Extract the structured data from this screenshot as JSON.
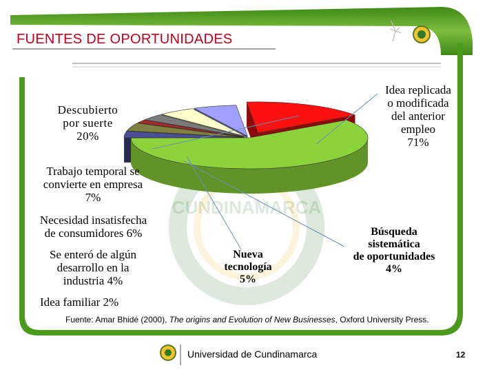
{
  "slide": {
    "title": "FUENTES DE OPORTUNIDADES",
    "source_prefix": "Fuente:  Amar Bhidé (2000), ",
    "source_italic": "The origins and Evolution of New Businesses",
    "source_suffix": ", Oxford University Press.",
    "university": "Universidad de Cundinamarca",
    "page_number": "12",
    "watermark_text": "CUNDINAMARCA",
    "colors": {
      "frame_green": "#4a9a1c",
      "title_red": "#c0001a"
    }
  },
  "chart_data": {
    "type": "pie",
    "title": "",
    "slices": [
      {
        "label": "Idea replicada\no modificada\ndel anterior\nempleo\n71%",
        "value": 71,
        "color": "#8cd23a"
      },
      {
        "label": "Búsqueda\nsistemática\nde oportunidades\n4%",
        "value": 4,
        "color": "#4a4f96"
      },
      {
        "label": "Nueva\ntecnología\n5%",
        "value": 5,
        "color": "#808040"
      },
      {
        "label": "Idea familiar  2%",
        "value": 2,
        "color": "#a52a2a"
      },
      {
        "label": "Se enteró de algún\ndesarrollo en la\nindustria  4%",
        "value": 4,
        "color": "#7a7a7a"
      },
      {
        "label": "Necesidad insatisfecha\nde consumidores  6%",
        "value": 6,
        "color": "#ffffcc"
      },
      {
        "label": "Trabajo temporal se\nconvierte en empresa\n7%",
        "value": 7,
        "color": "#a0a0ff"
      },
      {
        "label": "Descubierto\npor suerte\n20%",
        "value": 20,
        "color": "#ff1010"
      }
    ]
  }
}
